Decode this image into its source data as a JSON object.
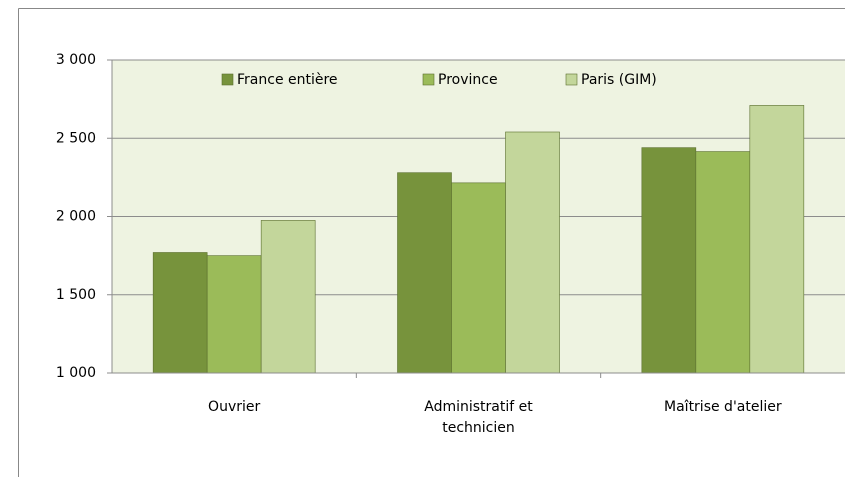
{
  "chart_data": {
    "type": "bar",
    "categories": [
      "Ouvrier",
      "Administratif et technicien",
      "Maîtrise d'atelier"
    ],
    "series": [
      {
        "name": "France entière",
        "color": "#77933c",
        "values": [
          1770,
          2280,
          2440
        ]
      },
      {
        "name": "Province",
        "color": "#9bbb59",
        "values": [
          1750,
          2215,
          2415
        ]
      },
      {
        "name": "Paris (GIM)",
        "color": "#c3d69b",
        "values": [
          1975,
          2540,
          2710
        ]
      }
    ],
    "ylim": [
      1000,
      3000
    ],
    "yticks": [
      {
        "value": 1000,
        "label": "1 000"
      },
      {
        "value": 1500,
        "label": "1 500"
      },
      {
        "value": 2000,
        "label": "2 000"
      },
      {
        "value": 2500,
        "label": "2 500"
      },
      {
        "value": 3000,
        "label": "3 000"
      }
    ],
    "grid": true,
    "legend": "top"
  }
}
